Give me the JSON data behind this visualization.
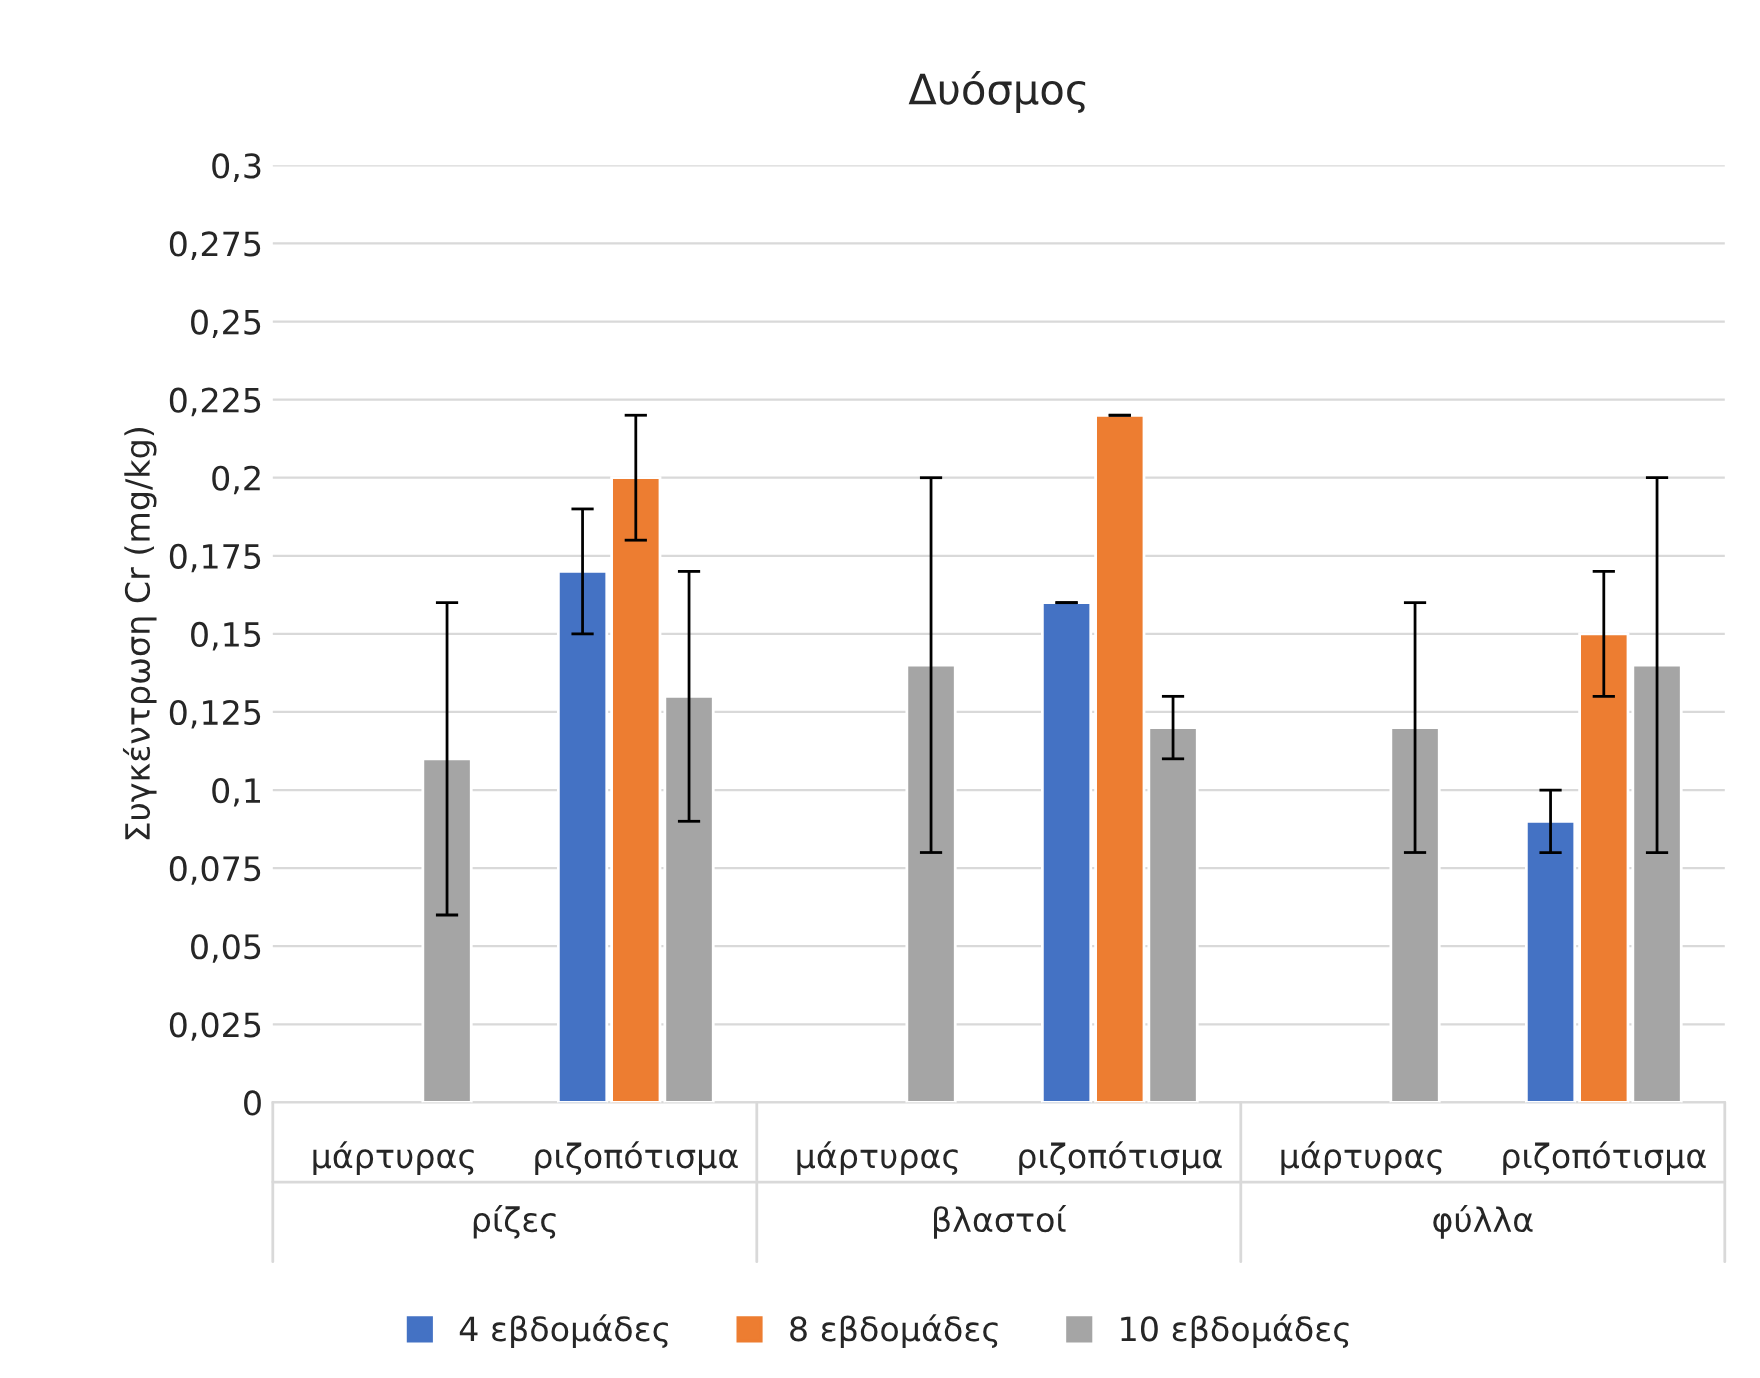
{
  "chart_data": {
    "type": "bar",
    "title": "Δυόσμος",
    "ylabel": "Συγκέντρωση Cr (mg/kg)",
    "categories": [
      "μάρτυρας",
      "ριζοπότισμα",
      "μάρτυρας",
      "ριζοπότισμα",
      "μάρτυρας",
      "ριζοπότισμα"
    ],
    "annotations": [
      "ρίζες",
      "βλαστοί",
      "φύλλα"
    ],
    "series": [
      {
        "name": "4 εβδομάδες",
        "color": "#4472c4",
        "values": [
          null,
          0.17,
          null,
          0.16,
          null,
          0.09
        ],
        "errors": [
          null,
          0.02,
          null,
          0,
          null,
          0.01
        ]
      },
      {
        "name": "8 εβδομάδες",
        "color": "#ed7d31",
        "values": [
          null,
          0.2,
          null,
          0.22,
          null,
          0.15
        ],
        "errors": [
          null,
          0.02,
          null,
          0,
          null,
          0.02
        ]
      },
      {
        "name": "10 εβδομάδες",
        "color": "#a5a5a5",
        "values": [
          0.11,
          0.13,
          0.14,
          0.12,
          0.12,
          0.14
        ],
        "errors": [
          0.05,
          0.04,
          0.06,
          0.01,
          0.04,
          0.06
        ]
      }
    ],
    "ylim": [
      0,
      0.3
    ],
    "yticks": [
      0,
      {
        "value": 0.025,
        "label": "0,025"
      },
      {
        "value": 0.05,
        "label": "0,05"
      },
      {
        "value": 0.075,
        "label": "0,075"
      },
      {
        "value": 0.1,
        "label": "0,1"
      },
      {
        "value": 0.125,
        "label": "0,125"
      },
      {
        "value": 0.15,
        "label": "0,15"
      },
      {
        "value": 0.175,
        "label": "0,175"
      },
      {
        "value": 0.2,
        "label": "0,2"
      },
      {
        "value": 0.225,
        "label": "0,225"
      },
      {
        "value": 0.25,
        "label": "0,25"
      },
      {
        "value": 0.275,
        "label": "0,275"
      },
      {
        "value": 0.3,
        "label": "0,3"
      }
    ],
    "grid": "y",
    "legend": "bottom"
  }
}
